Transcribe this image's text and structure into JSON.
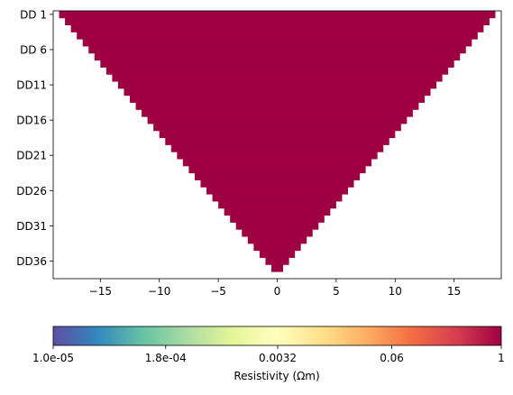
{
  "chart_data": {
    "type": "heatmap",
    "title": "",
    "xlabel": "",
    "ylabel": "",
    "xlim": [
      -19,
      19
    ],
    "x_ticks": [
      -15,
      -10,
      -5,
      0,
      5,
      10,
      15
    ],
    "x_tick_labels": [
      "−15",
      "−10",
      "−5",
      "0",
      "5",
      "10",
      "15"
    ],
    "rows": 38,
    "row_labels": [
      "DD 1",
      "DD 6",
      "DD11",
      "DD16",
      "DD21",
      "DD26",
      "DD31",
      "DD36"
    ],
    "row_label_indices": [
      1,
      6,
      11,
      16,
      21,
      26,
      31,
      36
    ],
    "row_half_width_start": 18.5,
    "row_half_width_step": 0.5,
    "cell_value": 1,
    "cell_color": "#9e0142",
    "colorbar": {
      "label": "Resistivity (Ωm)",
      "scale": "log",
      "range": [
        1e-05,
        1
      ],
      "tick_values": [
        1e-05,
        0.00018,
        0.0032,
        0.06,
        1
      ],
      "tick_labels": [
        "1.0e-05",
        "1.8e-04",
        "0.0032",
        "0.06",
        "1"
      ],
      "colormap_stops": [
        "#5e4fa2",
        "#3288bd",
        "#66c2a5",
        "#abdda4",
        "#e6f598",
        "#ffffbf",
        "#fee08b",
        "#fdae61",
        "#f46d43",
        "#d53e4f",
        "#9e0142"
      ]
    }
  }
}
